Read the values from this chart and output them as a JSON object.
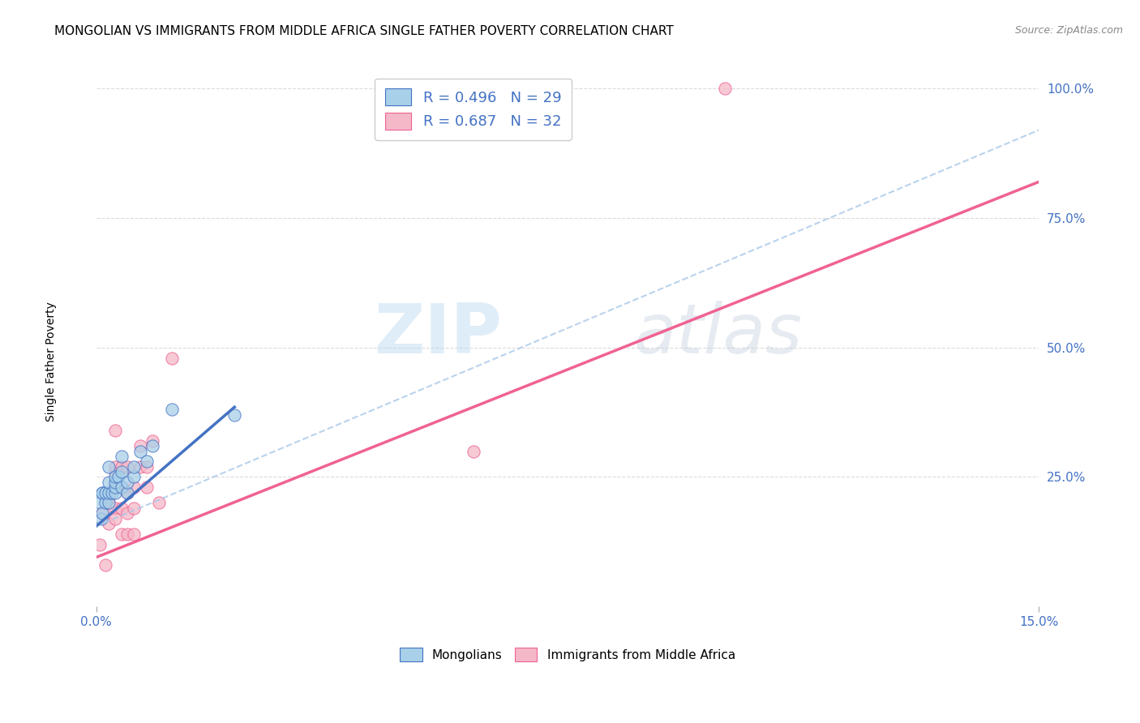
{
  "title": "MONGOLIAN VS IMMIGRANTS FROM MIDDLE AFRICA SINGLE FATHER POVERTY CORRELATION CHART",
  "source": "Source: ZipAtlas.com",
  "ylabel": "Single Father Poverty",
  "xlim": [
    0.0,
    0.15
  ],
  "ylim": [
    0.0,
    1.05
  ],
  "xtick_labels": [
    "0.0%",
    "15.0%"
  ],
  "xtick_positions": [
    0.0,
    0.15
  ],
  "ytick_labels": [
    "25.0%",
    "50.0%",
    "75.0%",
    "100.0%"
  ],
  "ytick_positions": [
    0.25,
    0.5,
    0.75,
    1.0
  ],
  "legend_r1": "R = 0.496   N = 29",
  "legend_r2": "R = 0.687   N = 32",
  "legend_bottom": [
    "Mongolians",
    "Immigrants from Middle Africa"
  ],
  "color_mongolian": "#a8d0e8",
  "color_africa": "#f4b8c8",
  "color_line_mongolian": "#4472c4",
  "color_dashed": "#a8c8e8",
  "color_line_africa": "#f06292",
  "color_ticks": "#4472c4",
  "mongolian_x": [
    0.0005,
    0.0008,
    0.001,
    0.001,
    0.001,
    0.0015,
    0.0015,
    0.002,
    0.002,
    0.002,
    0.002,
    0.0025,
    0.003,
    0.003,
    0.003,
    0.003,
    0.0035,
    0.004,
    0.004,
    0.004,
    0.005,
    0.005,
    0.006,
    0.006,
    0.007,
    0.008,
    0.009,
    0.012,
    0.022
  ],
  "mongolian_y": [
    0.2,
    0.17,
    0.22,
    0.22,
    0.18,
    0.2,
    0.22,
    0.2,
    0.22,
    0.24,
    0.27,
    0.22,
    0.22,
    0.23,
    0.24,
    0.25,
    0.25,
    0.23,
    0.26,
    0.29,
    0.22,
    0.24,
    0.25,
    0.27,
    0.3,
    0.28,
    0.31,
    0.38,
    0.37
  ],
  "africa_x": [
    0.0005,
    0.001,
    0.0015,
    0.002,
    0.002,
    0.002,
    0.003,
    0.003,
    0.003,
    0.003,
    0.003,
    0.003,
    0.004,
    0.004,
    0.004,
    0.004,
    0.005,
    0.005,
    0.005,
    0.005,
    0.006,
    0.006,
    0.006,
    0.007,
    0.007,
    0.008,
    0.008,
    0.009,
    0.01,
    0.012,
    0.06,
    0.1
  ],
  "africa_y": [
    0.12,
    0.18,
    0.08,
    0.16,
    0.2,
    0.21,
    0.19,
    0.23,
    0.26,
    0.27,
    0.34,
    0.17,
    0.19,
    0.23,
    0.14,
    0.27,
    0.22,
    0.27,
    0.14,
    0.18,
    0.23,
    0.19,
    0.14,
    0.27,
    0.31,
    0.27,
    0.23,
    0.32,
    0.2,
    0.48,
    0.3,
    1.0
  ],
  "mongolian_line_x": [
    0.0,
    0.022
  ],
  "mongolian_line_y": [
    0.155,
    0.385
  ],
  "dashed_line_x": [
    0.0,
    0.15
  ],
  "dashed_line_y": [
    0.155,
    0.92
  ],
  "africa_line_x": [
    0.0,
    0.15
  ],
  "africa_line_y": [
    0.095,
    0.82
  ],
  "background_color": "#ffffff",
  "grid_color": "#cccccc",
  "title_fontsize": 11,
  "axis_label_fontsize": 10,
  "tick_fontsize": 11,
  "legend_fontsize": 13
}
